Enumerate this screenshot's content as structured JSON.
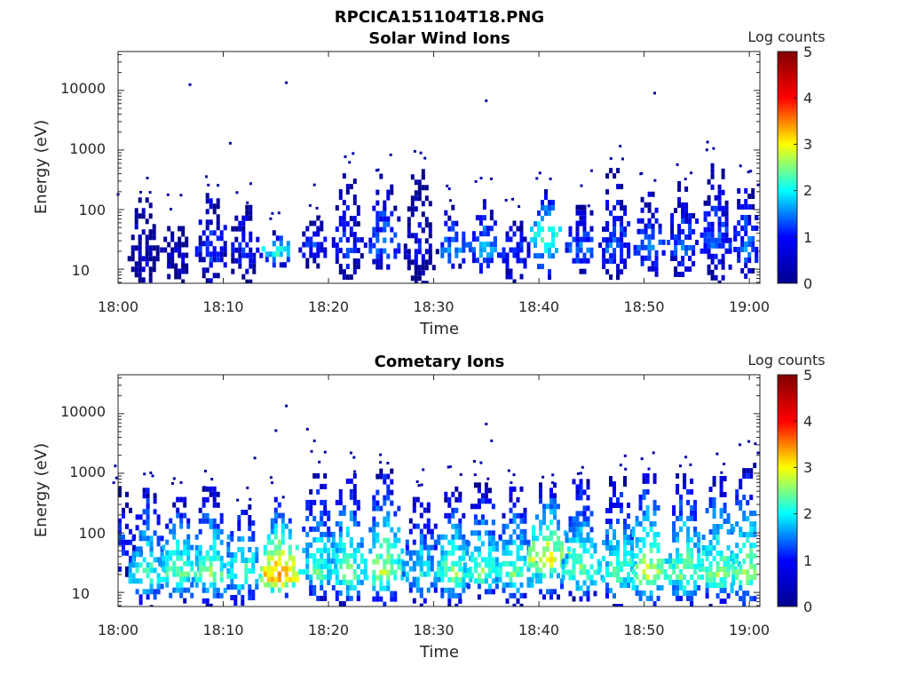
{
  "page_title": "RPCICA151104T18.PNG",
  "colormap": [
    "#00008f",
    "#0000ff",
    "#00ffff",
    "#ffff00",
    "#ff0000",
    "#800000"
  ],
  "chart_data": [
    {
      "type": "heatmap",
      "title": "Solar Wind Ions",
      "xlabel": "Time",
      "ylabel": "Energy (eV)",
      "x_tick_labels": [
        "18:00",
        "18:10",
        "18:20",
        "18:30",
        "18:40",
        "18:50",
        "19:00"
      ],
      "y_tick_labels": [
        "10",
        "100",
        "1000",
        "10000"
      ],
      "y_scale": "log",
      "xlim": [
        "18:00",
        "19:01"
      ],
      "ylim": [
        5.8,
        45000
      ],
      "colorbar": {
        "label": "Log counts",
        "ticks": [
          "0",
          "1",
          "2",
          "3",
          "4",
          "5"
        ],
        "range": [
          0,
          5
        ]
      },
      "bursts": [
        {
          "t": "18:02:15",
          "e_min": 6,
          "e_peak": 20,
          "e_max": 160,
          "peak": 0.4
        },
        {
          "t": "18:05:20",
          "e_min": 6,
          "e_peak": 20,
          "e_max": 80,
          "peak": 0.5
        },
        {
          "t": "18:08:40",
          "e_min": 7,
          "e_peak": 22,
          "e_max": 190,
          "peak": 1.0
        },
        {
          "t": "18:11:45",
          "e_min": 6,
          "e_peak": 20,
          "e_max": 120,
          "peak": 0.8
        },
        {
          "t": "18:15:00",
          "e_min": 12,
          "e_peak": 22,
          "e_max": 45,
          "peak": 2.3
        },
        {
          "t": "18:18:30",
          "e_min": 12,
          "e_peak": 24,
          "e_max": 80,
          "peak": 1.0
        },
        {
          "t": "18:21:40",
          "e_min": 8,
          "e_peak": 22,
          "e_max": 500,
          "peak": 1.0
        },
        {
          "t": "18:25:10",
          "e_min": 10,
          "e_peak": 24,
          "e_max": 400,
          "peak": 1.3
        },
        {
          "t": "18:28:30",
          "e_min": 6,
          "e_peak": 22,
          "e_max": 480,
          "peak": 0.6
        },
        {
          "t": "18:31:40",
          "e_min": 10,
          "e_peak": 22,
          "e_max": 120,
          "peak": 1.5
        },
        {
          "t": "18:34:40",
          "e_min": 10,
          "e_peak": 22,
          "e_max": 150,
          "peak": 1.6
        },
        {
          "t": "18:37:30",
          "e_min": 6,
          "e_peak": 22,
          "e_max": 80,
          "peak": 1.1
        },
        {
          "t": "18:40:30",
          "e_min": 8,
          "e_peak": 40,
          "e_max": 220,
          "peak": 2.4
        },
        {
          "t": "18:43:50",
          "e_min": 10,
          "e_peak": 22,
          "e_max": 120,
          "peak": 1.3
        },
        {
          "t": "18:47:00",
          "e_min": 8,
          "e_peak": 22,
          "e_max": 500,
          "peak": 1.2
        },
        {
          "t": "18:50:20",
          "e_min": 8,
          "e_peak": 22,
          "e_max": 200,
          "peak": 1.3
        },
        {
          "t": "18:53:30",
          "e_min": 8,
          "e_peak": 24,
          "e_max": 300,
          "peak": 1.2
        },
        {
          "t": "18:56:40",
          "e_min": 6,
          "e_peak": 30,
          "e_max": 600,
          "peak": 1.2
        },
        {
          "t": "18:59:30",
          "e_min": 8,
          "e_peak": 22,
          "e_max": 280,
          "peak": 1.3
        }
      ],
      "isolated_points": [
        {
          "t": "18:06:50",
          "e": 12500
        },
        {
          "t": "18:16:00",
          "e": 13500
        },
        {
          "t": "18:10:40",
          "e": 1300
        },
        {
          "t": "18:35:00",
          "e": 6700
        },
        {
          "t": "18:51:00",
          "e": 9000
        },
        {
          "t": "18:18:40",
          "e": 260
        },
        {
          "t": "18:00:00",
          "e": 180
        },
        {
          "t": "18:45:00",
          "e": 450
        },
        {
          "t": "19:00:50",
          "e": 260
        }
      ]
    },
    {
      "type": "heatmap",
      "title": "Cometary Ions",
      "xlabel": "Time",
      "ylabel": "Energy (eV)",
      "x_tick_labels": [
        "18:00",
        "18:10",
        "18:20",
        "18:30",
        "18:40",
        "18:50",
        "19:00"
      ],
      "y_tick_labels": [
        "10",
        "100",
        "1000",
        "10000"
      ],
      "y_scale": "log",
      "xlim": [
        "18:00",
        "19:01"
      ],
      "ylim": [
        5.8,
        45000
      ],
      "colorbar": {
        "label": "Log counts",
        "ticks": [
          "0",
          "1",
          "2",
          "3",
          "4",
          "5"
        ],
        "range": [
          0,
          5
        ]
      },
      "bursts": [
        {
          "t": "18:00:00",
          "e_min": 20,
          "e_peak": 40,
          "e_max": 600,
          "peak": 1.2
        },
        {
          "t": "18:02:40",
          "e_min": 6,
          "e_peak": 20,
          "e_max": 700,
          "peak": 2.3
        },
        {
          "t": "18:05:30",
          "e_min": 6,
          "e_peak": 22,
          "e_max": 400,
          "peak": 2.5
        },
        {
          "t": "18:08:40",
          "e_min": 6,
          "e_peak": 22,
          "e_max": 600,
          "peak": 2.6
        },
        {
          "t": "18:11:40",
          "e_min": 6,
          "e_peak": 22,
          "e_max": 300,
          "peak": 2.4
        },
        {
          "t": "18:15:10",
          "e_min": 8,
          "e_peak": 20,
          "e_max": 400,
          "peak": 3.8
        },
        {
          "t": "18:18:50",
          "e_min": 8,
          "e_peak": 22,
          "e_max": 1000,
          "peak": 2.3
        },
        {
          "t": "18:21:40",
          "e_min": 6,
          "e_peak": 22,
          "e_max": 1000,
          "peak": 2.5
        },
        {
          "t": "18:25:10",
          "e_min": 6,
          "e_peak": 22,
          "e_max": 1200,
          "peak": 2.8
        },
        {
          "t": "18:28:40",
          "e_min": 6,
          "e_peak": 22,
          "e_max": 400,
          "peak": 2.0
        },
        {
          "t": "18:31:40",
          "e_min": 6,
          "e_peak": 22,
          "e_max": 600,
          "peak": 2.6
        },
        {
          "t": "18:34:30",
          "e_min": 8,
          "e_peak": 22,
          "e_max": 700,
          "peak": 2.5
        },
        {
          "t": "18:37:30",
          "e_min": 6,
          "e_peak": 22,
          "e_max": 600,
          "peak": 2.4
        },
        {
          "t": "18:40:40",
          "e_min": 8,
          "e_peak": 40,
          "e_max": 700,
          "peak": 3.2
        },
        {
          "t": "18:43:50",
          "e_min": 8,
          "e_peak": 22,
          "e_max": 800,
          "peak": 2.5
        },
        {
          "t": "18:47:20",
          "e_min": 6,
          "e_peak": 22,
          "e_max": 900,
          "peak": 2.4
        },
        {
          "t": "18:50:10",
          "e_min": 6,
          "e_peak": 22,
          "e_max": 1000,
          "peak": 2.9
        },
        {
          "t": "18:53:40",
          "e_min": 6,
          "e_peak": 22,
          "e_max": 1000,
          "peak": 2.6
        },
        {
          "t": "18:56:50",
          "e_min": 6,
          "e_peak": 22,
          "e_max": 900,
          "peak": 2.7
        },
        {
          "t": "18:59:40",
          "e_min": 6,
          "e_peak": 22,
          "e_max": 1500,
          "peak": 2.6
        }
      ],
      "isolated_points": [
        {
          "t": "18:16:00",
          "e": 13500
        },
        {
          "t": "18:15:00",
          "e": 5200
        },
        {
          "t": "18:18:00",
          "e": 5500
        },
        {
          "t": "18:18:40",
          "e": 3500
        },
        {
          "t": "18:13:00",
          "e": 1800
        },
        {
          "t": "18:35:00",
          "e": 6700
        },
        {
          "t": "18:35:30",
          "e": 3500
        },
        {
          "t": "18:34:30",
          "e": 1500
        },
        {
          "t": "18:29:00",
          "e": 1150
        },
        {
          "t": "19:00:50",
          "e": 2200
        }
      ]
    }
  ]
}
